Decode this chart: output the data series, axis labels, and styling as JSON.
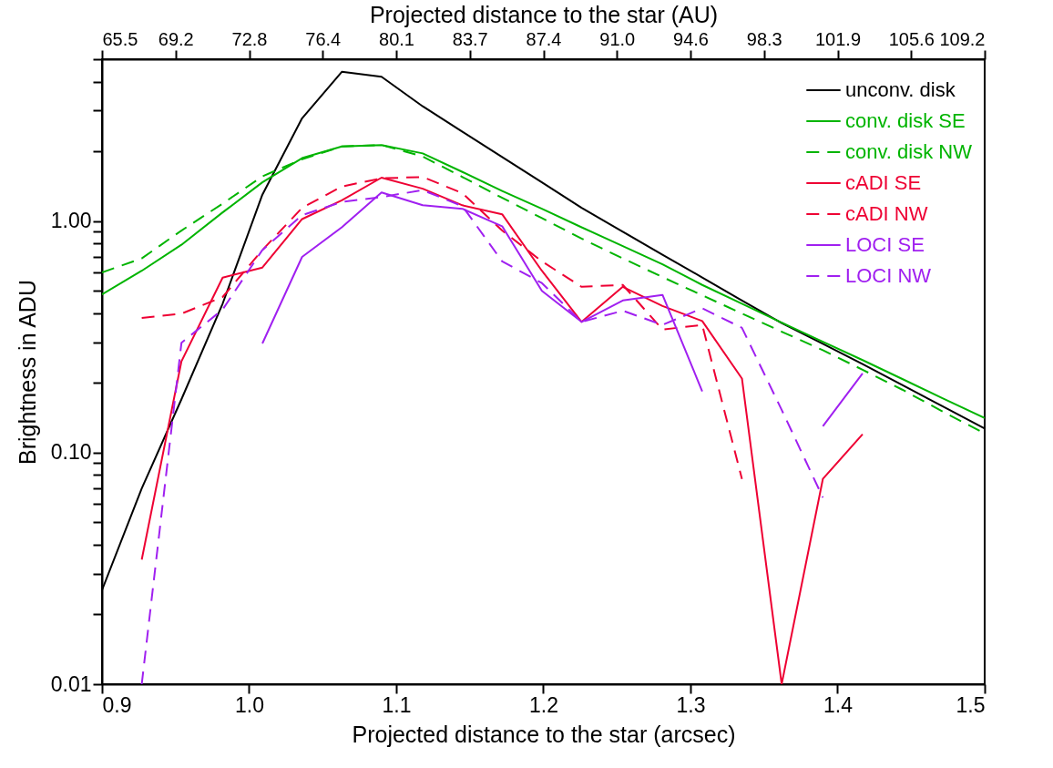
{
  "chart_data": {
    "type": "line",
    "xlabel": "Projected distance to the star (arcsec)",
    "ylabel": "Brightness in ADU",
    "x2label": "Projected distance to the star (AU)",
    "x": [
      0.9,
      0.927,
      0.954,
      0.982,
      1.009,
      1.036,
      1.063,
      1.09,
      1.118,
      1.145,
      1.172,
      1.199,
      1.226,
      1.254,
      1.281,
      1.308,
      1.335,
      1.362,
      1.39,
      1.417,
      1.444,
      1.471,
      1.5
    ],
    "series": [
      {
        "name": "unconv. disk",
        "color": "#000000",
        "line_style": "solid",
        "values": [
          0.0255,
          0.07,
          0.17,
          0.44,
          1.3,
          2.78,
          4.41,
          4.2,
          3.13,
          2.43,
          1.89,
          1.47,
          1.14,
          0.9,
          0.716,
          0.571,
          0.454,
          0.363,
          0.295,
          0.241,
          0.196,
          0.159,
          0.127
        ]
      },
      {
        "name": "conv. disk SE",
        "color": "#00b400",
        "line_style": "solid",
        "values": [
          0.482,
          0.61,
          0.79,
          1.09,
          1.47,
          1.87,
          2.1,
          2.13,
          1.96,
          1.63,
          1.35,
          1.13,
          0.94,
          0.78,
          0.65,
          0.53,
          0.44,
          0.364,
          0.301,
          0.251,
          0.208,
          0.172,
          0.141
        ]
      },
      {
        "name": "conv. disk NW",
        "color": "#00b400",
        "line_style": "dashed",
        "values": [
          0.6,
          0.69,
          0.91,
          1.19,
          1.56,
          1.85,
          2.1,
          2.13,
          1.9,
          1.55,
          1.26,
          1.03,
          0.84,
          0.69,
          0.573,
          0.478,
          0.399,
          0.333,
          0.277,
          0.228,
          0.187,
          0.151,
          0.121
        ]
      },
      {
        "name": "cADI SE",
        "color": "#ee0033",
        "line_style": "solid",
        "values": [
          null,
          0.0345,
          0.248,
          0.57,
          0.63,
          1.02,
          1.23,
          1.54,
          1.38,
          1.17,
          1.07,
          0.61,
          0.367,
          0.52,
          0.43,
          0.37,
          0.209,
          0.01,
          0.077,
          0.12,
          null,
          null,
          null
        ]
      },
      {
        "name": "cADI NW",
        "color": "#ee0033",
        "line_style": "dashed",
        "values": [
          null,
          0.382,
          0.398,
          0.47,
          0.75,
          1.14,
          1.41,
          1.53,
          1.55,
          1.32,
          0.91,
          0.67,
          0.52,
          0.53,
          0.34,
          0.356,
          0.077,
          null,
          null,
          null,
          null,
          null,
          null
        ]
      },
      {
        "name": "LOCI SE",
        "color": "#a020f0",
        "line_style": "solid",
        "values": [
          null,
          null,
          null,
          null,
          0.296,
          0.7,
          0.94,
          1.33,
          1.17,
          1.13,
          0.95,
          0.5,
          0.367,
          0.454,
          0.48,
          0.184,
          null,
          null,
          0.13,
          0.22,
          null,
          null,
          null
        ]
      },
      {
        "name": "LOCI NW",
        "color": "#a020f0",
        "line_style": "dashed",
        "values": [
          null,
          0.01,
          0.298,
          0.415,
          0.75,
          1.06,
          1.21,
          1.27,
          1.36,
          1.16,
          0.67,
          0.54,
          0.367,
          0.41,
          0.356,
          0.42,
          0.346,
          0.153,
          0.064,
          null,
          null,
          null,
          null
        ]
      }
    ],
    "xlim": [
      0.9,
      1.5
    ],
    "xticks": [
      0.9,
      {
        "value": 1.0,
        "label": "1.0"
      },
      1.1,
      1.2,
      1.3,
      1.4,
      1.5
    ],
    "x2lim": [
      65.52,
      109.2
    ],
    "x2ticks": [
      {
        "value": 65.52,
        "label": "65.5"
      },
      {
        "value": 69.16,
        "label": "69.2"
      },
      {
        "value": 72.8,
        "label": "72.8"
      },
      {
        "value": 76.44,
        "label": "76.4"
      },
      {
        "value": 80.08,
        "label": "80.1"
      },
      {
        "value": 83.72,
        "label": "83.7"
      },
      {
        "value": 87.36,
        "label": "87.4"
      },
      {
        "value": 91.0,
        "label": "91.0"
      },
      {
        "value": 94.64,
        "label": "94.6"
      },
      {
        "value": 98.28,
        "label": "98.3"
      },
      {
        "value": 101.92,
        "label": "101.9"
      },
      {
        "value": 105.56,
        "label": "105.6"
      },
      {
        "value": 109.2,
        "label": "109.2"
      }
    ],
    "ylim": [
      0.01,
      5
    ],
    "yticks": [
      {
        "value": 0.01,
        "label": "0.01"
      },
      {
        "value": 0.02,
        "label": null
      },
      {
        "value": 0.03,
        "label": null
      },
      {
        "value": 0.04,
        "label": null
      },
      {
        "value": 0.05,
        "label": null
      },
      {
        "value": 0.06,
        "label": null
      },
      {
        "value": 0.07,
        "label": null
      },
      {
        "value": 0.08,
        "label": null
      },
      {
        "value": 0.09,
        "label": null
      },
      {
        "value": 0.1,
        "label": "0.10"
      },
      {
        "value": 0.2,
        "label": null
      },
      {
        "value": 0.3,
        "label": null
      },
      {
        "value": 0.4,
        "label": null
      },
      {
        "value": 0.5,
        "label": null
      },
      {
        "value": 0.6,
        "label": null
      },
      {
        "value": 0.7,
        "label": null
      },
      {
        "value": 0.8,
        "label": null
      },
      {
        "value": 0.9,
        "label": null
      },
      {
        "value": 1,
        "label": "1.00"
      },
      {
        "value": 2,
        "label": null
      },
      {
        "value": 3,
        "label": null
      },
      {
        "value": 4,
        "label": null
      },
      {
        "value": 5,
        "label": null
      }
    ],
    "log": "y",
    "grid": false,
    "legend": "top right",
    "marker": "none"
  }
}
